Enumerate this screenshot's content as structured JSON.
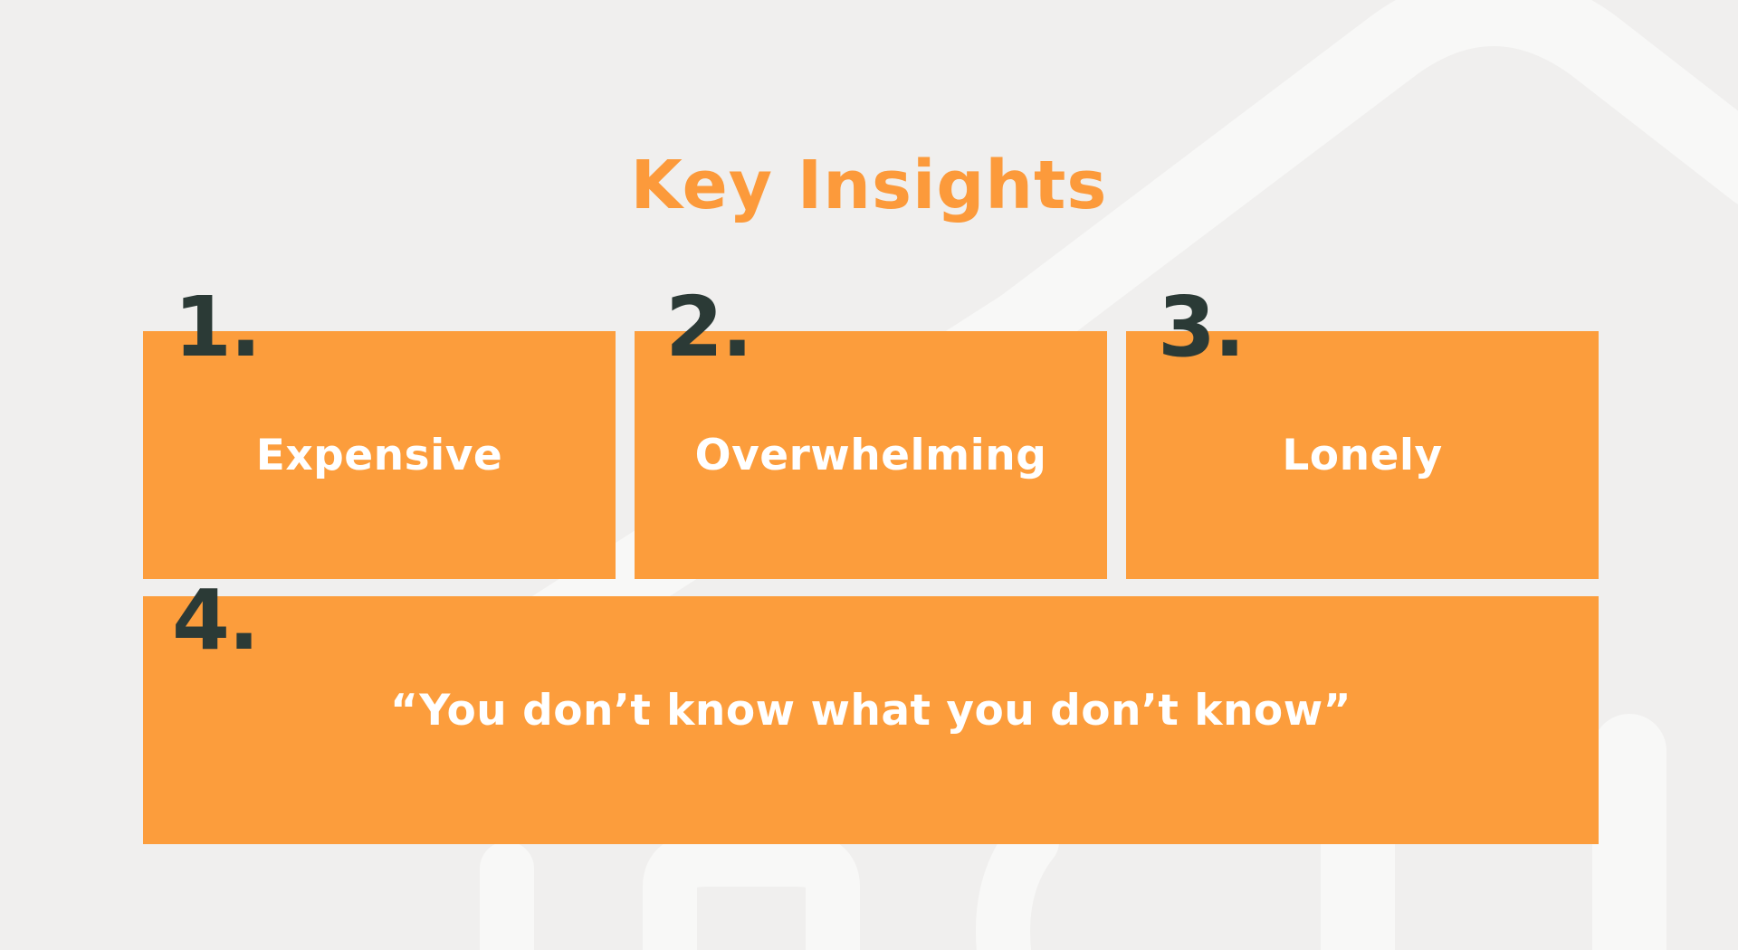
{
  "slide": {
    "title": "Key Insights",
    "insights": [
      {
        "number": "1.",
        "label": "Expensive"
      },
      {
        "number": "2.",
        "label": "Overwhelming"
      },
      {
        "number": "3.",
        "label": "Lonely"
      },
      {
        "number": "4.",
        "label": "“You don’t know what you don’t know”"
      }
    ]
  },
  "colors": {
    "background": "#f0efee",
    "accent": "#fc9d3c",
    "number": "#2b3a36",
    "card_text": "#ffffff"
  }
}
